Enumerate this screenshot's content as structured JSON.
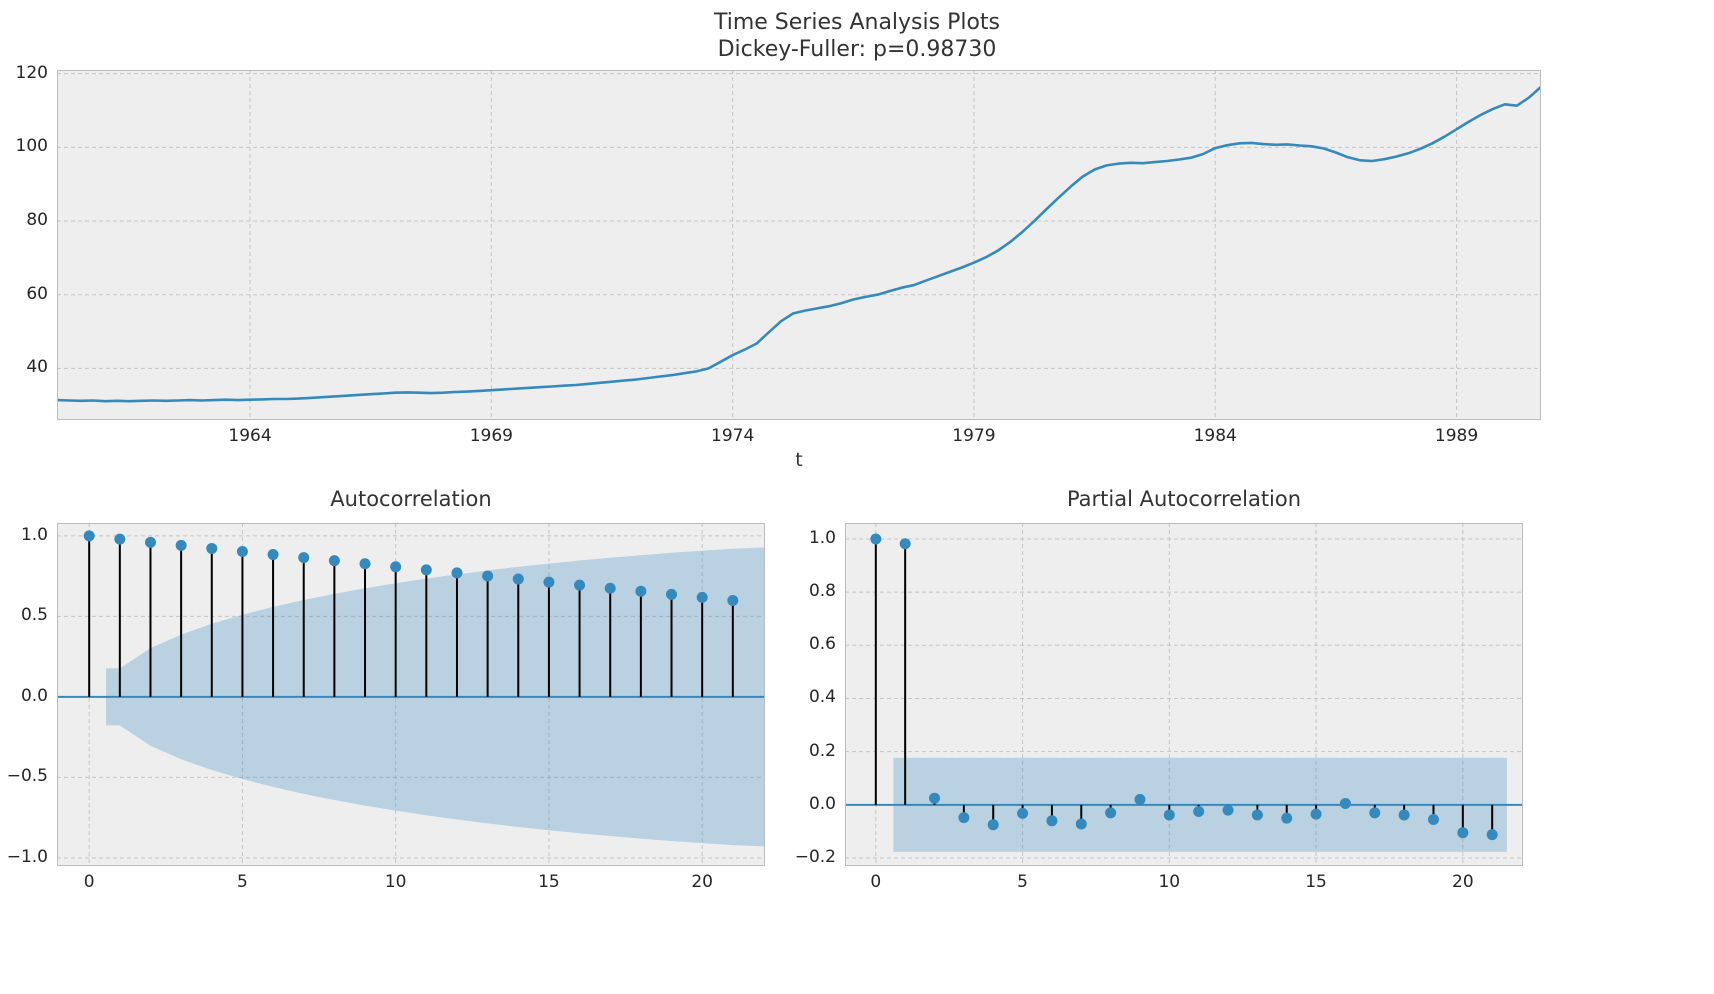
{
  "style": {
    "figure_background": "#ffffff",
    "axes_background": "#eeeeee",
    "grid_color": "#c5c5c5",
    "axes_edge_color": "#bcbcbc",
    "line_color": "#348abd",
    "marker_color": "#348abd",
    "stem_color": "#000000",
    "zero_line_color": "#348abd",
    "band_color": "#348abd",
    "band_opacity": 0.28,
    "text_color": "#333333",
    "tick_color": "#262626"
  },
  "chart_data": [
    {
      "id": "timeseries",
      "type": "line",
      "title": "Time Series Analysis Plots",
      "subtitle": "Dickey-Fuller: p=0.98730",
      "xlabel": "t",
      "ylabel": "",
      "grid": true,
      "xlim": [
        1960,
        1990.75
      ],
      "ylim": [
        26,
        121
      ],
      "xticks": [
        1964,
        1969,
        1974,
        1979,
        1984,
        1989
      ],
      "xticklabels": [
        "1964",
        "1969",
        "1974",
        "1979",
        "1984",
        "1989"
      ],
      "yticks": [
        40,
        60,
        80,
        100,
        120
      ],
      "yticklabels": [
        "40",
        "60",
        "80",
        "100",
        "120"
      ],
      "x": [
        1960,
        1960.25,
        1960.5,
        1960.75,
        1961,
        1961.25,
        1961.5,
        1961.75,
        1962,
        1962.25,
        1962.5,
        1962.75,
        1963,
        1963.25,
        1963.5,
        1963.75,
        1964,
        1964.25,
        1964.5,
        1964.75,
        1965,
        1965.25,
        1965.5,
        1965.75,
        1966,
        1966.25,
        1966.5,
        1966.75,
        1967,
        1967.25,
        1967.5,
        1967.75,
        1968,
        1968.25,
        1968.5,
        1968.75,
        1969,
        1969.25,
        1969.5,
        1969.75,
        1970,
        1970.25,
        1970.5,
        1970.75,
        1971,
        1971.25,
        1971.5,
        1971.75,
        1972,
        1972.25,
        1972.5,
        1972.75,
        1973,
        1973.25,
        1973.5,
        1973.75,
        1974,
        1974.25,
        1974.5,
        1974.75,
        1975,
        1975.25,
        1975.5,
        1975.75,
        1976,
        1976.25,
        1976.5,
        1976.75,
        1977,
        1977.25,
        1977.5,
        1977.75,
        1978,
        1978.25,
        1978.5,
        1978.75,
        1979,
        1979.25,
        1979.5,
        1979.75,
        1980,
        1980.25,
        1980.5,
        1980.75,
        1981,
        1981.25,
        1981.5,
        1981.75,
        1982,
        1982.25,
        1982.5,
        1982.75,
        1983,
        1983.25,
        1983.5,
        1983.75,
        1984,
        1984.25,
        1984.5,
        1984.75,
        1985,
        1985.25,
        1985.5,
        1985.75,
        1986,
        1986.25,
        1986.5,
        1986.75,
        1987,
        1987.25,
        1987.5,
        1987.75,
        1988,
        1988.25,
        1988.5,
        1988.75,
        1989,
        1989.25,
        1989.5,
        1989.75,
        1990,
        1990.25,
        1990.5,
        1990.75
      ],
      "y": [
        31.4,
        31.3,
        31.2,
        31.3,
        31.1,
        31.2,
        31.1,
        31.2,
        31.3,
        31.2,
        31.3,
        31.4,
        31.3,
        31.4,
        31.5,
        31.4,
        31.5,
        31.6,
        31.7,
        31.7,
        31.8,
        32.0,
        32.2,
        32.4,
        32.6,
        32.8,
        33.0,
        33.2,
        33.4,
        33.5,
        33.4,
        33.3,
        33.4,
        33.6,
        33.7,
        33.9,
        34.1,
        34.3,
        34.5,
        34.7,
        34.9,
        35.1,
        35.3,
        35.5,
        35.8,
        36.1,
        36.4,
        36.7,
        37.0,
        37.4,
        37.8,
        38.2,
        38.7,
        39.2,
        40.0,
        41.8,
        43.6,
        45.1,
        46.8,
        49.8,
        52.8,
        54.9,
        55.7,
        56.3,
        56.9,
        57.7,
        58.7,
        59.4,
        60.0,
        61.0,
        61.9,
        62.6,
        63.8,
        65.0,
        66.2,
        67.4,
        68.7,
        70.2,
        72.0,
        74.3,
        77.0,
        80.0,
        83.2,
        86.3,
        89.3,
        92.0,
        94.0,
        95.1,
        95.6,
        95.8,
        95.7,
        96.0,
        96.3,
        96.7,
        97.2,
        98.2,
        99.8,
        100.6,
        101.1,
        101.2,
        100.9,
        100.7,
        100.8,
        100.5,
        100.3,
        99.7,
        98.6,
        97.3,
        96.5,
        96.3,
        96.8,
        97.5,
        98.4,
        99.6,
        101.1,
        102.9,
        104.9,
        106.9,
        108.8,
        110.4,
        111.7,
        111.3,
        113.5,
        116.4
      ]
    },
    {
      "id": "acf",
      "type": "stem",
      "title": "Autocorrelation",
      "grid": true,
      "xlim": [
        -1.05,
        22.05
      ],
      "ylim": [
        -1.05,
        1.08
      ],
      "xticks": [
        0,
        5,
        10,
        15,
        20
      ],
      "xticklabels": [
        "0",
        "5",
        "10",
        "15",
        "20"
      ],
      "yticks": [
        1.0,
        0.5,
        0.0,
        -0.5,
        -1.0
      ],
      "yticklabels": [
        "1.0",
        "0.5",
        "0.0",
        "−0.5",
        "−1.0"
      ],
      "lags": [
        0,
        1,
        2,
        3,
        4,
        5,
        6,
        7,
        8,
        9,
        10,
        11,
        12,
        13,
        14,
        15,
        16,
        17,
        18,
        19,
        20,
        21
      ],
      "values": [
        1.0,
        0.98,
        0.96,
        0.941,
        0.922,
        0.903,
        0.884,
        0.865,
        0.846,
        0.827,
        0.808,
        0.789,
        0.77,
        0.751,
        0.732,
        0.713,
        0.694,
        0.675,
        0.656,
        0.637,
        0.618,
        0.599
      ],
      "band": {
        "x": [
          0.55,
          1,
          2,
          3,
          4,
          5,
          6,
          7,
          8,
          9,
          10,
          11,
          12,
          13,
          14,
          15,
          16,
          17,
          18,
          19,
          20,
          21,
          22.05
        ],
        "upper": [
          0.177,
          0.177,
          0.303,
          0.387,
          0.454,
          0.51,
          0.559,
          0.602,
          0.64,
          0.675,
          0.706,
          0.735,
          0.761,
          0.785,
          0.808,
          0.828,
          0.847,
          0.864,
          0.88,
          0.895,
          0.908,
          0.92,
          0.928
        ]
      }
    },
    {
      "id": "pacf",
      "type": "stem",
      "title": "Partial Autocorrelation",
      "grid": true,
      "xlim": [
        -1.05,
        22.05
      ],
      "ylim": [
        -0.23,
        1.06
      ],
      "xticks": [
        0,
        5,
        10,
        15,
        20
      ],
      "xticklabels": [
        "0",
        "5",
        "10",
        "15",
        "20"
      ],
      "yticks": [
        1.0,
        0.8,
        0.6,
        0.4,
        0.2,
        0.0,
        -0.2
      ],
      "yticklabels": [
        "1.0",
        "0.8",
        "0.6",
        "0.4",
        "0.2",
        "0.0",
        "−0.2"
      ],
      "lags": [
        0,
        1,
        2,
        3,
        4,
        5,
        6,
        7,
        8,
        9,
        10,
        11,
        12,
        13,
        14,
        15,
        16,
        17,
        18,
        19,
        20,
        21
      ],
      "values": [
        1.0,
        0.982,
        0.025,
        -0.048,
        -0.075,
        -0.032,
        -0.06,
        -0.072,
        -0.03,
        0.02,
        -0.038,
        -0.025,
        -0.02,
        -0.038,
        -0.05,
        -0.035,
        0.005,
        -0.03,
        -0.038,
        -0.055,
        -0.105,
        -0.112
      ],
      "band": {
        "x": [
          0.6,
          21.5
        ],
        "upper": [
          0.177,
          0.177
        ]
      }
    }
  ]
}
